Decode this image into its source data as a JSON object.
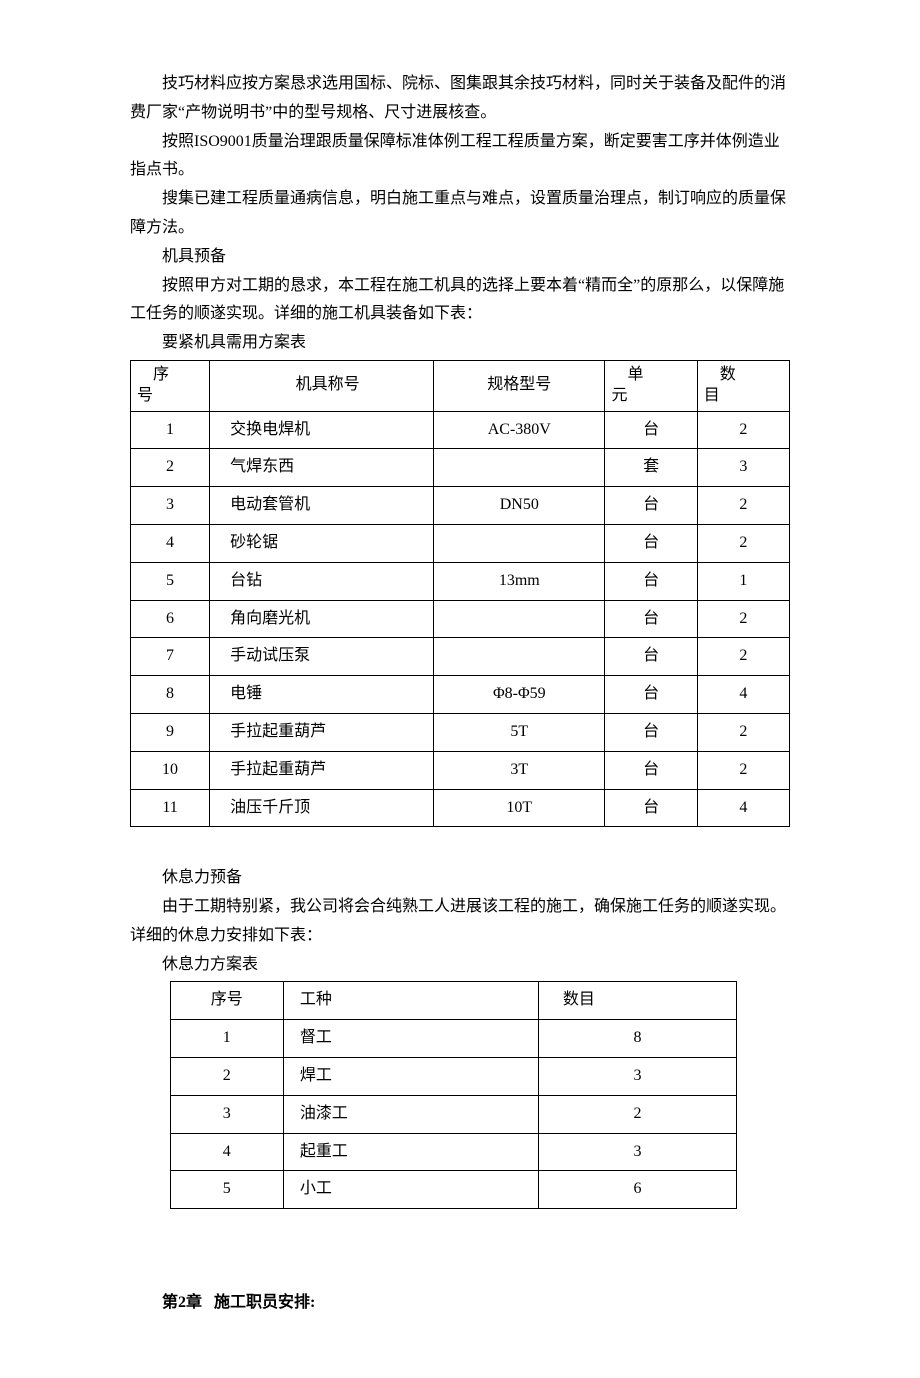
{
  "paragraphs": {
    "p1": "技巧材料应按方案恳求选用国标、院标、图集跟其余技巧材料，同时关于装备及配件的消费厂家“产物说明书”中的型号规格、尺寸进展核查。",
    "p2": "按照ISO9001质量治理跟质量保障标准体例工程工程质量方案，断定要害工序并体例造业指点书。",
    "p3": "搜集已建工程质量通病信息，明白施工重点与难点，设置质量治理点，制订响应的质量保障方法。",
    "p4": "机具预备",
    "p5": "按照甲方对工期的恳求，本工程在施工机具的选择上要本着“精而全”的原那么，以保障施工任务的顺遂实现。详细的施工机具装备如下表：",
    "p6": "休息力预备",
    "p7": "由于工期特别紧，我公司将会合纯熟工人进展该工程的施工，确保施工任务的顺遂实现。详细的休息力安排如下表："
  },
  "equipment_table": {
    "caption": "要紧机具需用方案表",
    "columns": {
      "c1_line1": "    序",
      "c1_line2": "号",
      "c2": "机具称号",
      "c3": "规格型号",
      "c4_line1": "    单",
      "c4_line2": "元",
      "c5_line1": "    数",
      "c5_line2": "目"
    },
    "rows": [
      {
        "no": "1",
        "name": "交换电焊机",
        "spec": "AC-380V",
        "unit": "台",
        "qty": "2"
      },
      {
        "no": "2",
        "name": "气焊东西",
        "spec": "",
        "unit": "套",
        "qty": "3"
      },
      {
        "no": "3",
        "name": "电动套管机",
        "spec": "DN50",
        "unit": "台",
        "qty": "2"
      },
      {
        "no": "4",
        "name": "砂轮锯",
        "spec": "",
        "unit": "台",
        "qty": "2"
      },
      {
        "no": "5",
        "name": "台钻",
        "spec": "13mm",
        "unit": "台",
        "qty": "1"
      },
      {
        "no": "6",
        "name": "角向磨光机",
        "spec": "",
        "unit": "台",
        "qty": "2"
      },
      {
        "no": "7",
        "name": "手动试压泵",
        "spec": "",
        "unit": "台",
        "qty": "2"
      },
      {
        "no": "8",
        "name": "电锤",
        "spec": "Φ8-Φ59",
        "unit": "台",
        "qty": "4"
      },
      {
        "no": "9",
        "name": "手拉起重葫芦",
        "spec": "5T",
        "unit": "台",
        "qty": "2"
      },
      {
        "no": "10",
        "name": "手拉起重葫芦",
        "spec": "3T",
        "unit": "台",
        "qty": "2"
      },
      {
        "no": "11",
        "name": "油压千斤顶",
        "spec": "10T",
        "unit": "台",
        "qty": "4"
      }
    ]
  },
  "labor_table": {
    "caption": "休息力方案表",
    "columns": {
      "c1": "序号",
      "c2": "工种",
      "c3": "数目"
    },
    "rows": [
      {
        "no": "1",
        "type": "督工",
        "qty": "8"
      },
      {
        "no": "2",
        "type": "焊工",
        "qty": "3"
      },
      {
        "no": "3",
        "type": "油漆工",
        "qty": "2"
      },
      {
        "no": "4",
        "type": "起重工",
        "qty": "3"
      },
      {
        "no": "5",
        "type": "小工",
        "qty": "6"
      }
    ]
  },
  "chapter_heading": "第2章   施工职员安排:"
}
